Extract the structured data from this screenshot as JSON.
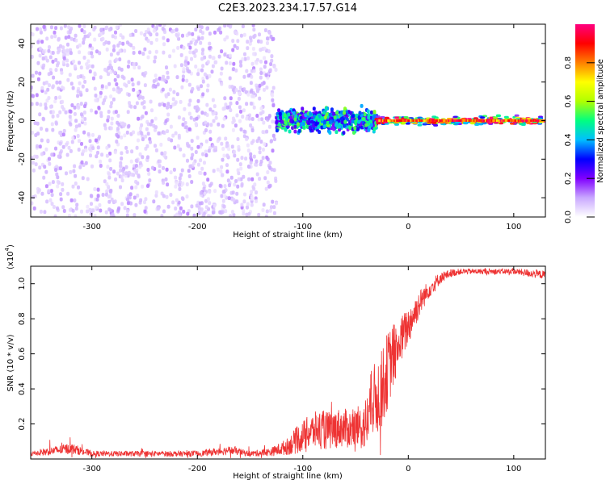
{
  "title": "C2E3.2023.234.17.57.G14",
  "chart_data": [
    {
      "type": "heatmap",
      "title": "",
      "xlabel": "Height of straight line (km)",
      "ylabel": "Frequency (Hz)",
      "xlim": [
        -358,
        130
      ],
      "ylim": [
        -50,
        50
      ],
      "xticks": [
        "-300",
        "-200",
        "-100",
        "0",
        "100"
      ],
      "yticks": [
        "-40",
        "-20",
        "0",
        "20",
        "40"
      ],
      "colorbar": {
        "label": "Normalized spectral amplitude",
        "range": [
          0.0,
          1.0
        ],
        "ticks": [
          "0.0",
          "0.2",
          "0.4",
          "0.6",
          "0.8"
        ],
        "colors": [
          "#ffffff",
          "#c9a8ff",
          "#8000ff",
          "#0000ff",
          "#00bfff",
          "#00ff80",
          "#b0ff00",
          "#ffff00",
          "#ff8000",
          "#ff0000",
          "#ff0080"
        ]
      },
      "regions": [
        {
          "x_range": [
            -358,
            -125
          ],
          "freq_spread": 50,
          "amplitude": 0.1
        },
        {
          "x_range": [
            -125,
            -30
          ],
          "freq_spread": 8,
          "amplitude": 0.45
        },
        {
          "x_range": [
            -30,
            130
          ],
          "freq_spread": 3,
          "amplitude": 0.85
        }
      ]
    },
    {
      "type": "line",
      "title": "",
      "xlabel": "Height of straight line (km)",
      "ylabel": "SNR (10 * v/v)",
      "scale_label": "(x10",
      "scale_exponent": "4",
      "scale_close": ")",
      "xlim": [
        -358,
        130
      ],
      "ylim": [
        0,
        1.1
      ],
      "xticks": [
        "-300",
        "-200",
        "-100",
        "0",
        "100"
      ],
      "yticks": [
        "0.2",
        "0.4",
        "0.6",
        "0.8",
        "1.0"
      ],
      "series": [
        {
          "color": "#ee3333",
          "x": [
            -358,
            -320,
            -300,
            -250,
            -200,
            -170,
            -150,
            -130,
            -115,
            -105,
            -95,
            -85,
            -75,
            -65,
            -55,
            -45,
            -40,
            -35,
            -30,
            -25,
            -20,
            -15,
            -10,
            -5,
            0,
            5,
            10,
            15,
            20,
            25,
            30,
            40,
            50,
            60,
            80,
            100,
            115,
            130
          ],
          "y": [
            0.03,
            0.06,
            0.03,
            0.03,
            0.03,
            0.05,
            0.03,
            0.04,
            0.07,
            0.11,
            0.15,
            0.17,
            0.16,
            0.18,
            0.17,
            0.18,
            0.2,
            0.32,
            0.35,
            0.4,
            0.5,
            0.58,
            0.64,
            0.7,
            0.76,
            0.82,
            0.88,
            0.93,
            0.97,
            1.0,
            1.03,
            1.06,
            1.07,
            1.07,
            1.07,
            1.07,
            1.06,
            1.05
          ],
          "noise": [
            0.01,
            0.02,
            0.01,
            0.01,
            0.01,
            0.015,
            0.01,
            0.015,
            0.03,
            0.05,
            0.06,
            0.07,
            0.07,
            0.07,
            0.07,
            0.08,
            0.1,
            0.12,
            0.14,
            0.14,
            0.14,
            0.12,
            0.1,
            0.08,
            0.07,
            0.06,
            0.05,
            0.04,
            0.03,
            0.03,
            0.02,
            0.015,
            0.01,
            0.01,
            0.01,
            0.01,
            0.015,
            0.015
          ]
        }
      ]
    }
  ]
}
